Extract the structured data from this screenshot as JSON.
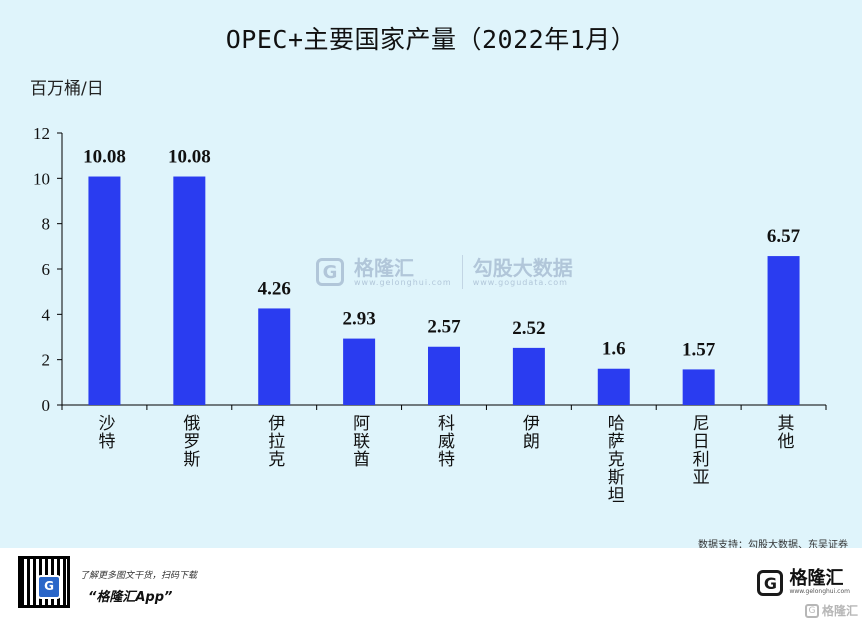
{
  "chart_data": {
    "type": "bar",
    "title": "OPEC+主要国家产量（2022年1月）",
    "ylabel": "百万桶/日",
    "categories": [
      "沙特",
      "俄罗斯",
      "伊拉克",
      "阿联酋",
      "科威特",
      "伊朗",
      "哈萨克斯坦",
      "尼日利亚",
      "其他"
    ],
    "values": [
      10.08,
      10.08,
      4.26,
      2.93,
      2.57,
      2.52,
      1.6,
      1.57,
      6.57
    ],
    "value_labels": [
      "10.08",
      "10.08",
      "4.26",
      "2.93",
      "2.57",
      "2.52",
      "1.6",
      "1.57",
      "6.57"
    ],
    "ylim": [
      0,
      12
    ],
    "yticks": [
      "0",
      "2",
      "4",
      "6",
      "8",
      "10",
      "12"
    ],
    "grid": false,
    "bar_color": "#2a3cf0"
  },
  "watermark": {
    "logo": "G",
    "name": "格隆汇",
    "url": "www.gelonghui.com",
    "name2": "勾股大数据",
    "url2": "www.gogudata.com"
  },
  "source": "数据支持：勾股大数据、东吴证券",
  "footer": {
    "promo": "了解更多图文干货，扫码下载",
    "app_name": "“格隆汇App”",
    "qr_logo": "G",
    "brand_logo": "G",
    "brand_name": "格隆汇",
    "brand_url": "www.gelonghui.com",
    "brand_name_small": "格隆汇"
  }
}
